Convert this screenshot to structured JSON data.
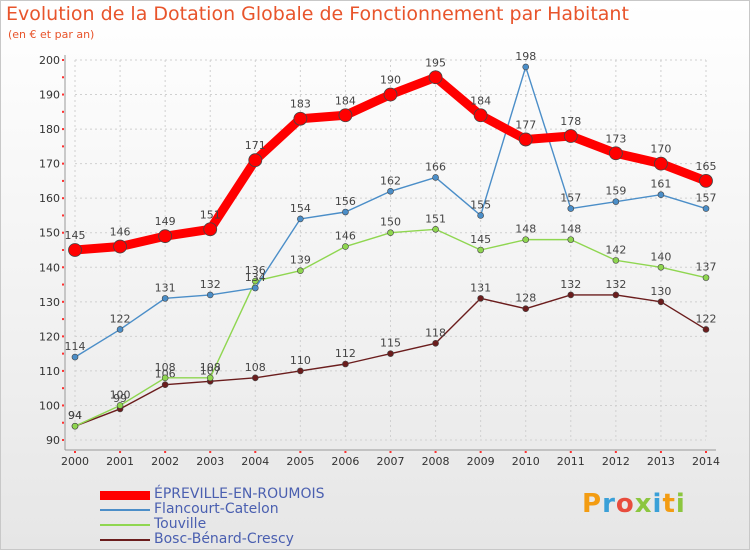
{
  "title": "Evolution de la Dotation Globale de Fonctionnement par Habitant",
  "subtitle": "(en € et par an)",
  "logo": "Proxiti",
  "chart_data": {
    "type": "line",
    "title": "Evolution de la Dotation Globale de Fonctionnement par Habitant",
    "subtitle": "(en € et par an)",
    "x": [
      2000,
      2001,
      2002,
      2003,
      2004,
      2005,
      2006,
      2007,
      2008,
      2009,
      2010,
      2011,
      2012,
      2013,
      2014
    ],
    "ylim": [
      90,
      200
    ],
    "yticks": [
      90,
      100,
      110,
      120,
      130,
      140,
      150,
      160,
      170,
      180,
      190,
      200
    ],
    "grid": true,
    "legend": "bottom-left",
    "series": [
      {
        "name": "ÉPREVILLE-EN-ROUMOIS",
        "color": "#ff0000",
        "values": [
          145,
          146,
          149,
          151,
          171,
          183,
          184,
          190,
          195,
          184,
          177,
          178,
          173,
          170,
          165
        ]
      },
      {
        "name": "Flancourt-Catelon",
        "color": "#4b8ec8",
        "values": [
          114,
          122,
          131,
          132,
          134,
          154,
          156,
          162,
          166,
          155,
          198,
          157,
          159,
          161,
          157
        ]
      },
      {
        "name": "Touville",
        "color": "#8fd650",
        "values": [
          94,
          100,
          108,
          108,
          136,
          139,
          146,
          150,
          151,
          145,
          148,
          148,
          142,
          140,
          137
        ]
      },
      {
        "name": "Bosc-Bénard-Crescy",
        "color": "#6b1d1d",
        "values": [
          94,
          99,
          106,
          107,
          108,
          110,
          112,
          115,
          118,
          131,
          128,
          132,
          132,
          130,
          122
        ]
      }
    ]
  }
}
